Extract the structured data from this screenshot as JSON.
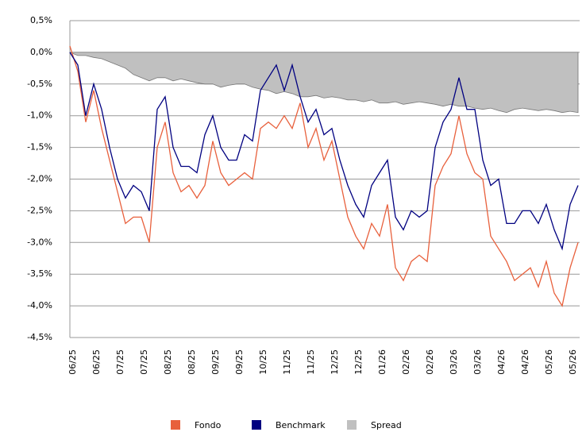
{
  "chart_data": {
    "type": "line",
    "categories": [
      "06/25",
      null,
      null,
      "06/25",
      null,
      null,
      "07/25",
      null,
      null,
      "07/25",
      null,
      null,
      "08/25",
      null,
      null,
      "08/25",
      null,
      null,
      "09/25",
      null,
      null,
      "09/25",
      null,
      null,
      "10/25",
      null,
      null,
      "11/25",
      null,
      null,
      "11/25",
      null,
      null,
      "12/25",
      null,
      null,
      "12/25",
      null,
      null,
      "01/26",
      null,
      null,
      "02/26",
      null,
      null,
      "02/26",
      null,
      null,
      "03/26",
      null,
      null,
      "03/26",
      null,
      null,
      "04/26",
      null,
      null,
      "04/26",
      null,
      null,
      "05/26",
      null,
      null,
      "05/26",
      null
    ],
    "series": [
      {
        "name": "Fondo",
        "color": "#e8603c",
        "values": [
          0.1,
          -0.3,
          -1.1,
          -0.6,
          -1.2,
          -1.7,
          -2.2,
          -2.7,
          -2.6,
          -2.6,
          -3.0,
          -1.5,
          -1.1,
          -1.9,
          -2.2,
          -2.1,
          -2.3,
          -2.1,
          -1.4,
          -1.9,
          -2.1,
          -2.0,
          -1.9,
          -2.0,
          -1.2,
          -1.1,
          -1.2,
          -1.0,
          -1.2,
          -0.8,
          -1.5,
          -1.2,
          -1.7,
          -1.4,
          -2.0,
          -2.6,
          -2.9,
          -3.1,
          -2.7,
          -2.9,
          -2.4,
          -3.4,
          -3.6,
          -3.3,
          -3.2,
          -3.3,
          -2.1,
          -1.8,
          -1.6,
          -1.0,
          -1.6,
          -1.9,
          -2.0,
          -2.9,
          -3.1,
          -3.3,
          -3.6,
          -3.5,
          -3.4,
          -3.7,
          -3.3,
          -3.8,
          -4.0,
          -3.4,
          -3.0
        ]
      },
      {
        "name": "Benchmark",
        "color": "#000080",
        "values": [
          0.0,
          -0.2,
          -1.0,
          -0.5,
          -0.9,
          -1.5,
          -2.0,
          -2.3,
          -2.1,
          -2.2,
          -2.5,
          -0.9,
          -0.7,
          -1.5,
          -1.8,
          -1.8,
          -1.9,
          -1.3,
          -1.0,
          -1.5,
          -1.7,
          -1.7,
          -1.3,
          -1.4,
          -0.6,
          -0.4,
          -0.2,
          -0.6,
          -0.2,
          -0.7,
          -1.1,
          -0.9,
          -1.3,
          -1.2,
          -1.7,
          -2.1,
          -2.4,
          -2.6,
          -2.1,
          -1.9,
          -1.7,
          -2.6,
          -2.8,
          -2.5,
          -2.6,
          -2.5,
          -1.5,
          -1.1,
          -0.9,
          -0.4,
          -0.9,
          -0.9,
          -1.7,
          -2.1,
          -2.0,
          -2.7,
          -2.7,
          -2.5,
          -2.5,
          -2.7,
          -2.4,
          -2.8,
          -3.1,
          -2.4,
          -2.1
        ]
      },
      {
        "name": "Spread",
        "color": "#c0c0c0",
        "area": true,
        "values": [
          0,
          -0.05,
          -0.05,
          -0.08,
          -0.1,
          -0.15,
          -0.2,
          -0.25,
          -0.35,
          -0.4,
          -0.45,
          -0.4,
          -0.4,
          -0.45,
          -0.42,
          -0.45,
          -0.48,
          -0.5,
          -0.5,
          -0.55,
          -0.52,
          -0.5,
          -0.5,
          -0.55,
          -0.58,
          -0.6,
          -0.65,
          -0.62,
          -0.65,
          -0.7,
          -0.7,
          -0.68,
          -0.72,
          -0.7,
          -0.72,
          -0.75,
          -0.75,
          -0.78,
          -0.75,
          -0.8,
          -0.8,
          -0.78,
          -0.82,
          -0.8,
          -0.78,
          -0.8,
          -0.82,
          -0.85,
          -0.82,
          -0.85,
          -0.85,
          -0.88,
          -0.9,
          -0.88,
          -0.92,
          -0.95,
          -0.9,
          -0.88,
          -0.9,
          -0.92,
          -0.9,
          -0.92,
          -0.95,
          -0.93,
          -0.95
        ]
      }
    ],
    "ylim": [
      -4.5,
      0.5
    ],
    "yticks": [
      {
        "value": 0.5,
        "label": "0,5%"
      },
      {
        "value": 0,
        "label": "0,0%"
      },
      {
        "value": -0.5,
        "label": "-0,5%"
      },
      {
        "value": -1,
        "label": "-1,0%"
      },
      {
        "value": -1.5,
        "label": "-1,5%"
      },
      {
        "value": -2,
        "label": "-2,0%"
      },
      {
        "value": -2.5,
        "label": "-2,5%"
      },
      {
        "value": -3,
        "label": "-3,0%"
      },
      {
        "value": -3.5,
        "label": "-3,5%"
      },
      {
        "value": -4,
        "label": "-4,0%"
      },
      {
        "value": -4.5,
        "label": "-4,5%"
      }
    ],
    "grid": true
  }
}
